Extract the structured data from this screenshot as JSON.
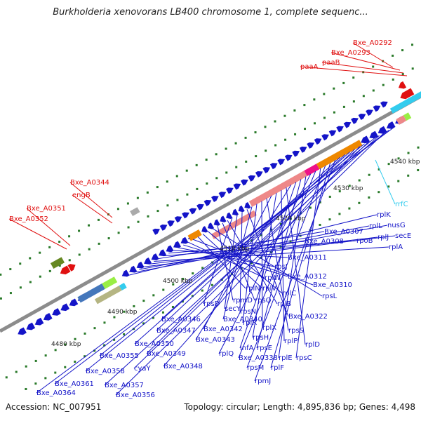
{
  "title": "Burkholderia xenovorans LB400 chromosome 1, complete sequenc...",
  "footer": {
    "accession": "Accession: NC_007951",
    "topology": "Topology: circular; Length: 4,895,836 bp; Genes: 4,498"
  },
  "colors": {
    "red": "#e01010",
    "blue": "#1414c8",
    "cyan": "#33ccee",
    "backbone": "#888888",
    "tick": "#2a7a2a"
  },
  "kbp_labels": [
    "4480 kbp",
    "4490 kbp",
    "4500 kbp",
    "4510 kbp",
    "4520 kbp",
    "4530 kbp",
    "4540 kbp"
  ],
  "red_labels": [
    "Bxe_A0292",
    "Bxe_A0293",
    "paaB",
    "paaA",
    "Bxe_A0344",
    "engB",
    "Bxe_A0351",
    "Bxe_A0352"
  ],
  "blue_labels": [
    "rplK",
    "nusG",
    "rplL",
    "secE",
    "rplJ",
    "rplA",
    "Bxe_A0307",
    "rpoB",
    "Bxe_A0308",
    "Bxe_A0311",
    "rpsJ",
    "Bxe_A0312",
    "rplW",
    "Bxe_A0310",
    "rplN",
    "rplV",
    "rplC",
    "rpsL",
    "rpmD",
    "rpsQ",
    "rplB",
    "rpsD",
    "secY",
    "rpsN",
    "Bxe_A0322",
    "Bxe_A0340",
    "rplR",
    "rplX",
    "rpsS",
    "Bxe_A0342",
    "rpsH",
    "rplP",
    "rplD",
    "Bxe_A0343",
    "infA",
    "rpsE",
    "rplE",
    "rplQ",
    "Bxe_A0338",
    "rpsC",
    "rpsM",
    "rplF",
    "rpmJ",
    "Bxe_A0346",
    "Bxe_A0347",
    "Bxe_A0350",
    "Bxe_A0349",
    "Bxe_A0348",
    "Bxe_A0355",
    "cyaY",
    "Bxe_A0358",
    "Bxe_A0357",
    "Bxe_A0356",
    "Bxe_A0361",
    "Bxe_A0364"
  ],
  "cyan_labels": [
    "rrfC"
  ]
}
